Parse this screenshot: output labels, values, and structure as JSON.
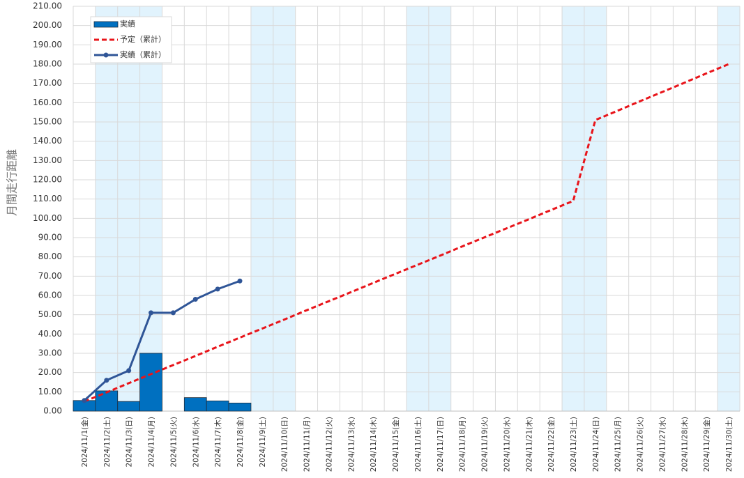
{
  "chart_data": {
    "type": "combo",
    "y_label": "月間走行距離",
    "categories": [
      "2024/11/1(金)",
      "2024/11/2(土)",
      "2024/11/3(日)",
      "2024/11/4(月)",
      "2024/11/5(火)",
      "2024/11/6(水)",
      "2024/11/7(木)",
      "2024/11/8(金)",
      "2024/11/9(土)",
      "2024/11/10(日)",
      "2024/11/11(月)",
      "2024/11/12(火)",
      "2024/11/13(水)",
      "2024/11/14(木)",
      "2024/11/15(金)",
      "2024/11/16(土)",
      "2024/11/17(日)",
      "2024/11/18(月)",
      "2024/11/19(火)",
      "2024/11/20(水)",
      "2024/11/21(木)",
      "2024/11/22(金)",
      "2024/11/23(土)",
      "2024/11/24(日)",
      "2024/11/25(月)",
      "2024/11/26(火)",
      "2024/11/27(水)",
      "2024/11/28(木)",
      "2024/11/29(金)",
      "2024/11/30(土)"
    ],
    "shaded": [
      1,
      2,
      3,
      8,
      9,
      15,
      16,
      22,
      23,
      29
    ],
    "shade_color": "#e1f3fd",
    "series": [
      {
        "name": "実績",
        "type": "bar",
        "color": "#0070c0",
        "values": [
          5.5,
          10.5,
          5,
          30,
          0,
          7,
          5.3,
          4.2,
          null,
          null,
          null,
          null,
          null,
          null,
          null,
          null,
          null,
          null,
          null,
          null,
          null,
          null,
          null,
          null,
          null,
          null,
          null,
          null,
          null,
          null
        ]
      },
      {
        "name": "予定（累計）",
        "type": "line",
        "dashed": true,
        "color": "#e8141a",
        "values": [
          5,
          9.7,
          14.5,
          19.2,
          23.9,
          28.6,
          33.4,
          38.1,
          42.8,
          47.5,
          52.3,
          57,
          61.7,
          66.5,
          71.2,
          75.9,
          80.6,
          85.4,
          90.1,
          94.8,
          99.5,
          104.3,
          109,
          151,
          155.8,
          160.7,
          165.5,
          170.3,
          175.2,
          180
        ]
      },
      {
        "name": "実績（累計）",
        "type": "line",
        "markers": true,
        "color": "#2f5597",
        "values": [
          5.5,
          16,
          21,
          51,
          51,
          58,
          63.3,
          67.5,
          null,
          null,
          null,
          null,
          null,
          null,
          null,
          null,
          null,
          null,
          null,
          null,
          null,
          null,
          null,
          null,
          null,
          null,
          null,
          null,
          null,
          null
        ]
      }
    ],
    "ylim": [
      0,
      210
    ],
    "yticks": [
      {
        "value": 0,
        "label": "0.00"
      },
      {
        "value": 10,
        "label": "10.00"
      },
      {
        "value": 20,
        "label": "20.00"
      },
      {
        "value": 30,
        "label": "30.00"
      },
      {
        "value": 40,
        "label": "40.00"
      },
      {
        "value": 50,
        "label": "50.00"
      },
      {
        "value": 60,
        "label": "60.00"
      },
      {
        "value": 70,
        "label": "70.00"
      },
      {
        "value": 80,
        "label": "80.00"
      },
      {
        "value": 90,
        "label": "90.00"
      },
      {
        "value": 100,
        "label": "100.00"
      },
      {
        "value": 110,
        "label": "110.00"
      },
      {
        "value": 120,
        "label": "120.00"
      },
      {
        "value": 130,
        "label": "130.00"
      },
      {
        "value": 140,
        "label": "140.00"
      },
      {
        "value": 150,
        "label": "150.00"
      },
      {
        "value": 160,
        "label": "160.00"
      },
      {
        "value": 170,
        "label": "170.00"
      },
      {
        "value": 180,
        "label": "180.00"
      },
      {
        "value": 190,
        "label": "190.00"
      },
      {
        "value": 200,
        "label": "200.00"
      },
      {
        "value": 210,
        "label": "210.00"
      }
    ],
    "grid": true,
    "legend": "top-left"
  }
}
